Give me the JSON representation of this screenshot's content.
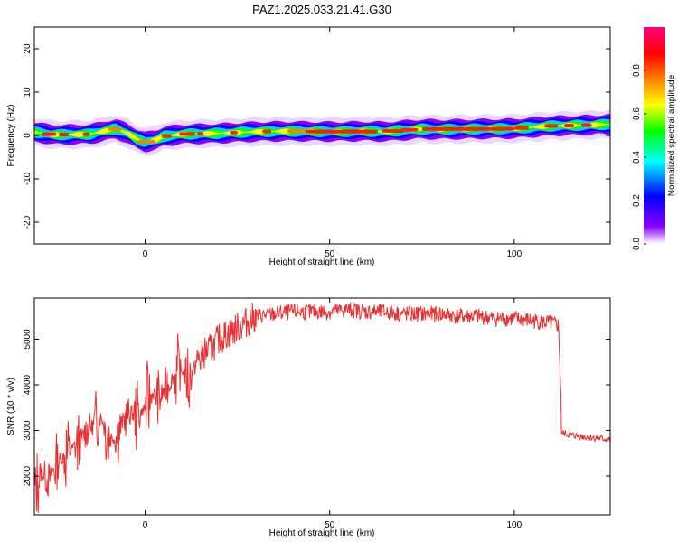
{
  "title": "PAZ1.2025.033.21.41.G30",
  "chart_data": [
    {
      "type": "heatmap",
      "xlabel": "Height of straight line (km)",
      "ylabel": "Frequency (Hz)",
      "xlim": [
        -30,
        126
      ],
      "ylim": [
        -25,
        25
      ],
      "xticks": [
        0,
        50,
        100
      ],
      "yticks": [
        20,
        10,
        0,
        -10,
        -20
      ],
      "colorbar": {
        "label": "Normalized spectral amplitude",
        "range": [
          0,
          1
        ],
        "ticks": [
          "0.0",
          "0.2",
          "0.4",
          "0.6",
          "0.8"
        ],
        "colors": [
          "#ffffff",
          "#8a00ff",
          "#0000ff",
          "#00ffff",
          "#00ff00",
          "#ffff00",
          "#ff8000",
          "#ff0000",
          "#ff0080"
        ]
      },
      "ridge": {
        "x": [
          -30,
          -25,
          -20,
          -15,
          -10,
          -8,
          -5,
          -2,
          0,
          3,
          5,
          10,
          15,
          20,
          30,
          40,
          50,
          60,
          65,
          70,
          75,
          80,
          90,
          100,
          105,
          110,
          120,
          126
        ],
        "frequency_hz": [
          0.8,
          0.2,
          0.2,
          0.3,
          1.2,
          1.5,
          0.6,
          -0.9,
          -1.5,
          -1.0,
          -0.2,
          0.3,
          0.4,
          0.5,
          0.9,
          1.0,
          0.9,
          1.0,
          0.9,
          1.2,
          1.5,
          1.4,
          1.5,
          1.6,
          1.9,
          2.2,
          2.4,
          2.6
        ]
      },
      "grid": false
    },
    {
      "type": "line",
      "xlabel": "Height of straight line (km)",
      "ylabel": "SNR (10 * v/v)",
      "xlim": [
        -30,
        126
      ],
      "ylim": [
        1150,
        5900
      ],
      "xticks": [
        0,
        50,
        100
      ],
      "yticks": [
        2000,
        3000,
        4000,
        5000
      ],
      "color": "#e83030",
      "series": [
        {
          "x": [
            -30,
            -28,
            -26,
            -24,
            -22,
            -20,
            -18,
            -16,
            -14,
            -12,
            -10,
            -8,
            -6,
            -4,
            -2,
            0,
            2,
            4,
            6,
            8,
            10,
            12,
            14,
            16,
            18,
            20,
            22,
            24,
            26,
            28,
            30,
            35,
            40,
            45,
            50,
            55,
            60,
            65,
            70,
            75,
            80,
            85,
            90,
            95,
            100,
            105,
            110,
            112,
            113,
            115,
            120,
            126
          ],
          "values": [
            1700,
            2100,
            1900,
            2300,
            2400,
            2600,
            2700,
            3000,
            3100,
            3300,
            2900,
            2800,
            3200,
            3400,
            3300,
            3500,
            3800,
            3700,
            4000,
            4200,
            4300,
            4100,
            4500,
            4700,
            4800,
            5000,
            5100,
            5200,
            5300,
            5400,
            5500,
            5550,
            5600,
            5600,
            5600,
            5650,
            5600,
            5600,
            5550,
            5550,
            5550,
            5500,
            5500,
            5450,
            5450,
            5400,
            5350,
            5300,
            2950,
            2900,
            2850,
            2800
          ]
        }
      ],
      "grid": false
    }
  ]
}
